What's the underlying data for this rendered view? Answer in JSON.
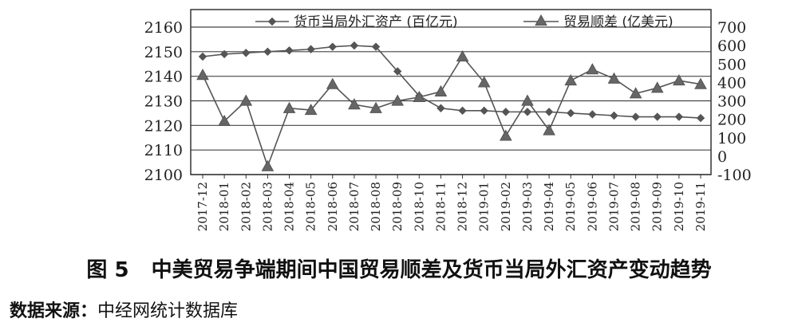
{
  "chart_data": {
    "type": "line",
    "title": "",
    "categories": [
      "2017-12",
      "2018-01",
      "2018-02",
      "2018-03",
      "2018-04",
      "2018-05",
      "2018-06",
      "2018-07",
      "2018-08",
      "2018-09",
      "2018-10",
      "2018-11",
      "2018-12",
      "2019-01",
      "2019-02",
      "2019-03",
      "2019-04",
      "2019-05",
      "2019-06",
      "2019-07",
      "2019-08",
      "2019-09",
      "2019-10",
      "2019-11"
    ],
    "y_left": {
      "min": 2100,
      "max": 2160,
      "ticks": [
        "2100",
        "2110",
        "2120",
        "2130",
        "2140",
        "2150",
        "2160"
      ]
    },
    "y_right": {
      "min": -100,
      "max": 700,
      "ticks": [
        "-100",
        "0",
        "100",
        "200",
        "300",
        "400",
        "500",
        "600",
        "700"
      ]
    },
    "grid": "horizontal",
    "legend_position": "top",
    "series": [
      {
        "name": "货币当局外汇资产 (百亿元)",
        "axis": "left",
        "marker": "diamond",
        "color": "#555555",
        "values": [
          2148,
          2149,
          2149.5,
          2150,
          2150.5,
          2151,
          2152,
          2152.5,
          2152,
          2142,
          2132,
          2127,
          2126,
          2126,
          2125.5,
          2125.5,
          2125.5,
          2125,
          2124.5,
          2124,
          2123.5,
          2123.5,
          2123.5,
          2123
        ]
      },
      {
        "name": "贸易顺差 (亿美元)",
        "axis": "right",
        "marker": "triangle",
        "color": "#555555",
        "values": [
          440,
          190,
          300,
          -55,
          260,
          250,
          390,
          280,
          260,
          300,
          320,
          350,
          540,
          400,
          110,
          300,
          140,
          410,
          470,
          420,
          340,
          370,
          410,
          390
        ]
      }
    ]
  },
  "caption": {
    "number": "图 5",
    "text": "中美贸易争端期间中国贸易顺差及货币当局外汇资产变动趋势"
  },
  "source": {
    "label": "数据来源：",
    "text": "中经网统计数据库"
  }
}
